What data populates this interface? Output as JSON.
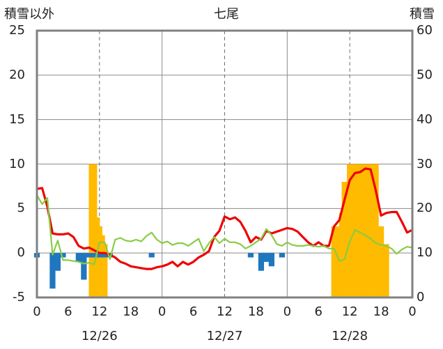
{
  "chart_data": {
    "type": "bar+line",
    "title": "七尾",
    "y_left_label": "積雪以外",
    "y_right_label": "積雪",
    "y_left_range": [
      -5,
      25
    ],
    "y_left_ticks": [
      "-5",
      "0",
      "5",
      "10",
      "15",
      "20",
      "25"
    ],
    "y_right_range": [
      0,
      60
    ],
    "y_right_ticks": [
      "0",
      "10",
      "20",
      "30",
      "40",
      "50",
      "60"
    ],
    "x_range_hours": [
      0,
      72
    ],
    "x_tick_labels": [
      "0",
      "6",
      "12",
      "18",
      "0",
      "6",
      "12",
      "18",
      "0",
      "6",
      "12",
      "18",
      "0"
    ],
    "date_labels": [
      "12/26",
      "12/27",
      "12/28"
    ],
    "grid": {
      "solid_day_lines": true,
      "dashed_noon_lines": true
    },
    "colors": {
      "temperature": "#ee0000",
      "secondary_line": "#88cc44",
      "snow_depth": "#ffbb00",
      "precip_change": "#1f77c0",
      "baseline": "#7030a0",
      "frame": "#808080"
    },
    "series": [
      {
        "kind": "line",
        "axis": "left",
        "color": "#ee0000",
        "values": [
          7.2,
          7.3,
          5.2,
          2.2,
          2.1,
          2.1,
          2.2,
          1.8,
          0.8,
          0.5,
          0.6,
          0.3,
          0.0,
          0.0,
          -0.2,
          -0.5,
          -1.0,
          -1.2,
          -1.5,
          -1.6,
          -1.7,
          -1.8,
          -1.8,
          -1.6,
          -1.5,
          -1.3,
          -1.0,
          -1.5,
          -1.0,
          -1.3,
          -1.0,
          -0.5,
          -0.2,
          0.2,
          1.8,
          2.5,
          4.1,
          3.8,
          4.0,
          3.5,
          2.5,
          1.2,
          1.8,
          1.5,
          2.5,
          2.2,
          2.4,
          2.6,
          2.8,
          2.7,
          2.4,
          1.8,
          1.2,
          0.8,
          1.2,
          0.8,
          0.8,
          3.0,
          3.7,
          6.0,
          8.2,
          9.0,
          9.1,
          9.5,
          9.4,
          7.0,
          4.2,
          4.5,
          4.6,
          4.6,
          3.5,
          2.3,
          2.6
        ]
      },
      {
        "kind": "line",
        "axis": "left",
        "color": "#88cc44",
        "values": [
          6.5,
          5.5,
          6.2,
          -0.2,
          1.4,
          -0.8,
          -0.8,
          -0.9,
          -1.0,
          -1.2,
          -1.1,
          -1.3,
          1.2,
          1.2,
          -0.7,
          1.5,
          1.7,
          1.4,
          1.3,
          1.5,
          1.3,
          1.9,
          2.3,
          1.5,
          1.1,
          1.3,
          0.9,
          1.1,
          1.1,
          0.8,
          1.2,
          1.6,
          0.2,
          1.1,
          1.8,
          1.1,
          1.6,
          1.2,
          1.2,
          1.0,
          0.5,
          0.8,
          1.2,
          1.6,
          2.7,
          2.0,
          1.0,
          0.8,
          1.2,
          0.9,
          0.8,
          0.8,
          0.9,
          0.8,
          0.7,
          0.8,
          0.5,
          0.5,
          -0.9,
          -0.7,
          1.3,
          2.6,
          2.3,
          2.0,
          1.6,
          1.1,
          0.9,
          0.8,
          0.5,
          -0.1,
          0.4,
          0.7,
          0.6
        ]
      },
      {
        "kind": "bar",
        "axis": "right",
        "color": "#ffbb00",
        "values": [
          {
            "h": 10.5,
            "v": 30
          },
          {
            "h": 11,
            "v": 30
          },
          {
            "h": 11.5,
            "v": 18
          },
          {
            "h": 12,
            "v": 16
          },
          {
            "h": 12.5,
            "v": 14
          },
          {
            "h": 13,
            "v": 12
          },
          {
            "h": 57,
            "v": 16
          },
          {
            "h": 58,
            "v": 16
          },
          {
            "h": 58.5,
            "v": 19
          },
          {
            "h": 59,
            "v": 26
          },
          {
            "h": 60,
            "v": 30
          },
          {
            "h": 61,
            "v": 30
          },
          {
            "h": 62,
            "v": 30
          },
          {
            "h": 63,
            "v": 30
          },
          {
            "h": 64,
            "v": 30
          },
          {
            "h": 64.5,
            "v": 30
          },
          {
            "h": 65,
            "v": 30
          },
          {
            "h": 66,
            "v": 16
          },
          {
            "h": 67,
            "v": 12
          }
        ]
      },
      {
        "kind": "bar",
        "axis": "left",
        "color": "#1f77c0",
        "values": [
          {
            "h": 0,
            "v": -0.5
          },
          {
            "h": 3,
            "v": -4.0
          },
          {
            "h": 4,
            "v": -2.0
          },
          {
            "h": 5,
            "v": -0.5
          },
          {
            "h": 8,
            "v": -1.0
          },
          {
            "h": 9,
            "v": -3.0
          },
          {
            "h": 10,
            "v": -0.5
          },
          {
            "h": 11,
            "v": -0.5
          },
          {
            "h": 12,
            "v": -0.5
          },
          {
            "h": 13,
            "v": -0.5
          },
          {
            "h": 14,
            "v": -0.5
          },
          {
            "h": 22,
            "v": -0.5
          },
          {
            "h": 41,
            "v": -0.5
          },
          {
            "h": 43,
            "v": -2.0
          },
          {
            "h": 44,
            "v": -1.0
          },
          {
            "h": 45,
            "v": -1.5
          },
          {
            "h": 47,
            "v": -0.5
          }
        ]
      }
    ]
  }
}
